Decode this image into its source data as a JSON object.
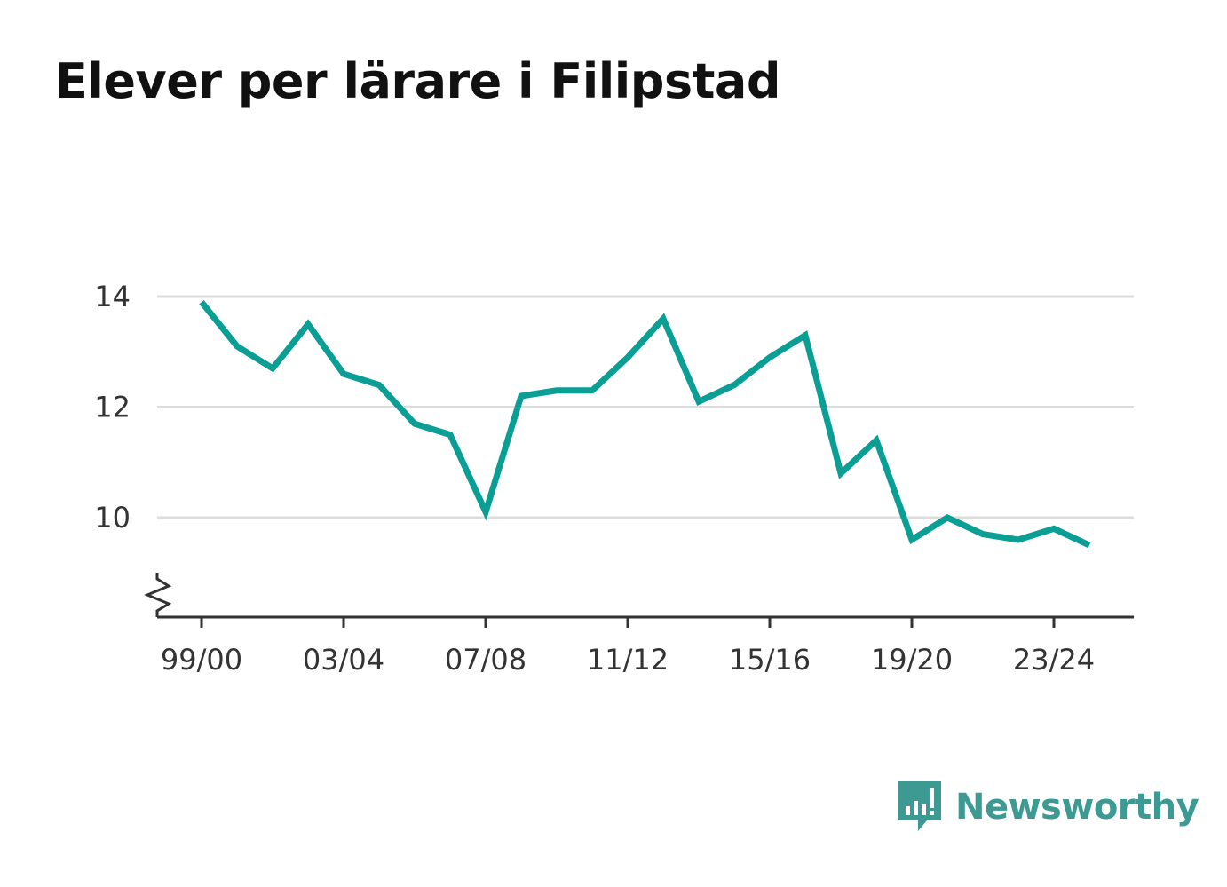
{
  "page": {
    "title": "Elever per lärare i Filipstad"
  },
  "brand": {
    "name": "Newsworthy",
    "icon": "newsworthy-bar-chart-icon",
    "color": "#3d9a93"
  },
  "chart_data": {
    "type": "line",
    "title": "Elever per lärare i Filipstad",
    "xlabel": "",
    "ylabel": "",
    "x": [
      "99/00",
      "00/01",
      "01/02",
      "02/03",
      "03/04",
      "04/05",
      "05/06",
      "06/07",
      "07/08",
      "08/09",
      "09/10",
      "10/11",
      "11/12",
      "12/13",
      "13/14",
      "14/15",
      "15/16",
      "16/17",
      "17/18",
      "18/19",
      "19/20",
      "20/21",
      "21/22",
      "22/23",
      "23/24",
      "24/25"
    ],
    "x_tick_labels": [
      "99/00",
      "03/04",
      "07/08",
      "11/12",
      "15/16",
      "19/20",
      "23/24"
    ],
    "series": [
      {
        "color": "#0a9e94",
        "values": [
          13.9,
          13.1,
          12.7,
          13.5,
          12.6,
          12.4,
          11.7,
          11.5,
          10.1,
          12.2,
          12.3,
          12.3,
          12.9,
          13.6,
          12.1,
          12.4,
          12.9,
          13.3,
          10.8,
          11.4,
          9.6,
          10.0,
          9.7,
          9.6,
          9.8,
          9.5
        ]
      }
    ],
    "y_ticks": [
      10,
      12,
      14
    ],
    "ylim": [
      8.2,
      14
    ],
    "y_axis_break": true,
    "grid": true,
    "legend": "none"
  }
}
